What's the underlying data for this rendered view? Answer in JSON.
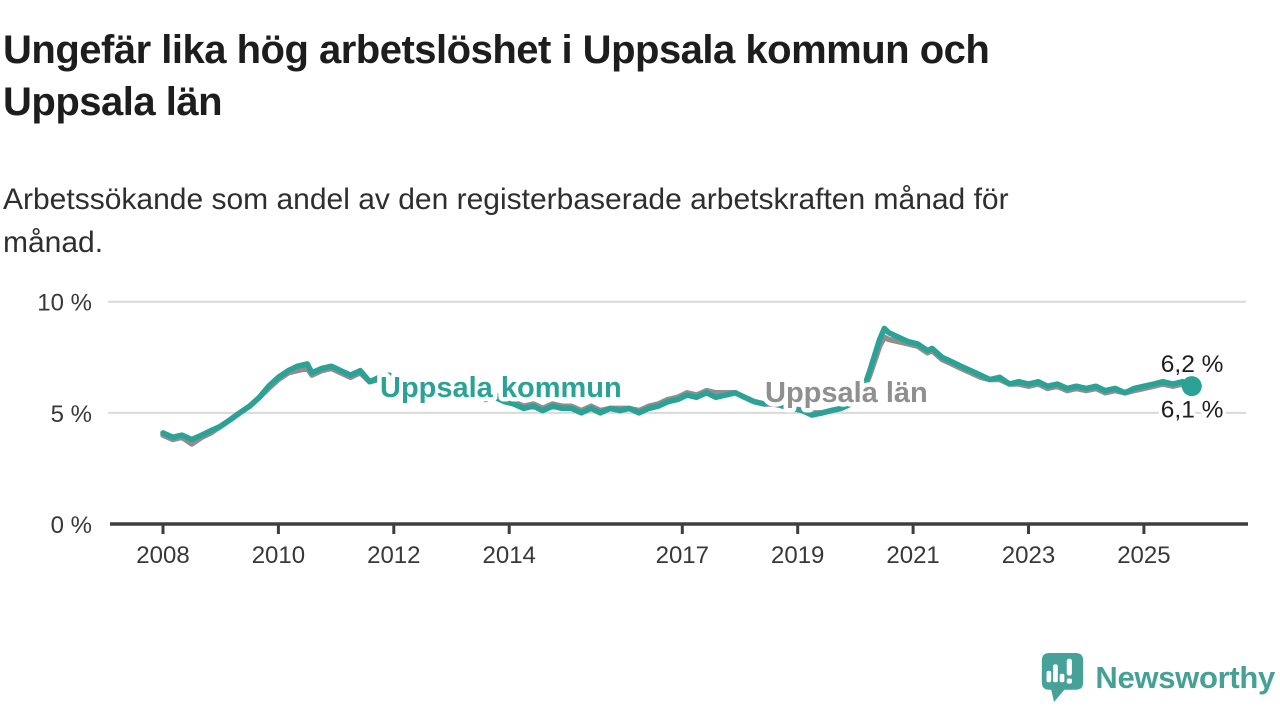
{
  "title": {
    "line1": "Ungefär lika hög arbetslöshet i Uppsala kommun och",
    "line2": "Uppsala län"
  },
  "subtitle": {
    "line1": "Arbetssökande som andel av den registerbaserade arbetskraften månad för",
    "line2": "månad."
  },
  "branding": {
    "logo_text": "Newsworthy",
    "logo_color": "#45a095"
  },
  "chart_data": {
    "type": "line",
    "title": "Ungefär lika hög arbetslöshet i Uppsala kommun och Uppsala län",
    "subtitle": "Arbetssökande som andel av den registerbaserade arbetskraften månad för månad.",
    "unit": "%",
    "ylim": [
      0,
      10.5
    ],
    "xlim": [
      2007.1,
      2026.8
    ],
    "grid": "horizontal",
    "legend_position": "inline-labels",
    "yticks": [
      {
        "value": 0,
        "label": "0 %"
      },
      {
        "value": 5,
        "label": "5 %"
      },
      {
        "value": 10,
        "label": "10 %"
      }
    ],
    "xticks": [
      {
        "year": 2008,
        "label": "2008"
      },
      {
        "year": 2010,
        "label": "2010"
      },
      {
        "year": 2012,
        "label": "2012"
      },
      {
        "year": 2014,
        "label": "2014"
      },
      {
        "year": 2017,
        "label": "2017"
      },
      {
        "year": 2019,
        "label": "2019"
      },
      {
        "year": 2021,
        "label": "2021"
      },
      {
        "year": 2023,
        "label": "2023"
      },
      {
        "year": 2025,
        "label": "2025"
      }
    ],
    "x": [
      2008.0,
      2008.17,
      2008.33,
      2008.5,
      2008.67,
      2008.83,
      2009.0,
      2009.17,
      2009.33,
      2009.5,
      2009.67,
      2009.83,
      2010.0,
      2010.17,
      2010.33,
      2010.5,
      2010.58,
      2010.75,
      2010.92,
      2011.08,
      2011.25,
      2011.42,
      2011.58,
      2011.75,
      2011.92,
      2012.08,
      2012.25,
      2012.42,
      2012.58,
      2012.75,
      2012.92,
      2013.08,
      2013.25,
      2013.42,
      2013.58,
      2013.75,
      2013.92,
      2014.08,
      2014.25,
      2014.42,
      2014.58,
      2014.75,
      2014.92,
      2015.08,
      2015.25,
      2015.42,
      2015.58,
      2015.75,
      2015.92,
      2016.08,
      2016.25,
      2016.42,
      2016.58,
      2016.75,
      2016.92,
      2017.08,
      2017.25,
      2017.42,
      2017.58,
      2017.75,
      2017.92,
      2018.08,
      2018.25,
      2018.42,
      2018.58,
      2018.75,
      2018.92,
      2019.08,
      2019.25,
      2019.42,
      2019.58,
      2019.75,
      2019.92,
      2020.08,
      2020.25,
      2020.42,
      2020.5,
      2020.58,
      2020.75,
      2020.92,
      2021.08,
      2021.25,
      2021.33,
      2021.5,
      2021.67,
      2021.83,
      2022.0,
      2022.17,
      2022.33,
      2022.5,
      2022.67,
      2022.83,
      2023.0,
      2023.17,
      2023.33,
      2023.5,
      2023.67,
      2023.83,
      2024.0,
      2024.17,
      2024.33,
      2024.5,
      2024.67,
      2024.83,
      2025.0,
      2025.17,
      2025.33,
      2025.5,
      2025.67,
      2025.75,
      2025.83
    ],
    "series": [
      {
        "name": "Uppsala kommun",
        "color": "#2aa396",
        "end_label": "6,2 %",
        "end_dot": true,
        "values": [
          4.1,
          3.9,
          4.0,
          3.8,
          4.0,
          4.2,
          4.4,
          4.7,
          5.0,
          5.3,
          5.7,
          6.2,
          6.6,
          6.9,
          7.1,
          7.2,
          6.8,
          7.0,
          7.1,
          6.9,
          6.7,
          6.9,
          6.4,
          6.6,
          6.7,
          6.3,
          6.0,
          6.3,
          6.1,
          6.2,
          6.0,
          5.9,
          5.7,
          5.8,
          5.6,
          5.7,
          5.5,
          5.4,
          5.2,
          5.3,
          5.1,
          5.3,
          5.2,
          5.2,
          5.0,
          5.2,
          5.0,
          5.2,
          5.1,
          5.2,
          5.0,
          5.2,
          5.3,
          5.5,
          5.6,
          5.8,
          5.7,
          5.9,
          5.7,
          5.8,
          5.9,
          5.7,
          5.5,
          5.4,
          5.5,
          5.3,
          5.2,
          5.1,
          4.9,
          5.0,
          5.1,
          5.2,
          5.4,
          5.6,
          6.9,
          8.3,
          8.8,
          8.6,
          8.4,
          8.2,
          8.1,
          7.8,
          7.9,
          7.5,
          7.3,
          7.1,
          6.9,
          6.7,
          6.5,
          6.6,
          6.3,
          6.4,
          6.3,
          6.4,
          6.2,
          6.3,
          6.1,
          6.2,
          6.1,
          6.2,
          6.0,
          6.1,
          5.9,
          6.1,
          6.2,
          6.3,
          6.4,
          6.3,
          6.4,
          6.1,
          6.2
        ]
      },
      {
        "name": "Uppsala län",
        "color": "#8f8f8f",
        "end_label": "6,1 %",
        "end_dot": false,
        "values": [
          4.0,
          3.8,
          3.9,
          3.6,
          3.9,
          4.1,
          4.4,
          4.7,
          5.0,
          5.3,
          5.7,
          6.1,
          6.5,
          6.8,
          6.9,
          7.0,
          6.7,
          6.9,
          7.0,
          6.8,
          6.6,
          6.8,
          6.4,
          6.5,
          6.6,
          6.2,
          6.0,
          6.2,
          6.1,
          6.1,
          6.0,
          5.9,
          5.8,
          5.9,
          5.7,
          5.8,
          5.6,
          5.5,
          5.3,
          5.4,
          5.2,
          5.4,
          5.3,
          5.3,
          5.1,
          5.3,
          5.1,
          5.2,
          5.2,
          5.2,
          5.1,
          5.3,
          5.4,
          5.6,
          5.7,
          5.9,
          5.8,
          6.0,
          5.9,
          5.9,
          5.9,
          5.7,
          5.5,
          5.4,
          5.4,
          5.3,
          5.2,
          5.1,
          5.0,
          5.0,
          5.1,
          5.2,
          5.4,
          5.6,
          6.7,
          8.0,
          8.4,
          8.3,
          8.2,
          8.1,
          8.0,
          7.7,
          7.8,
          7.4,
          7.2,
          7.0,
          6.8,
          6.6,
          6.5,
          6.5,
          6.3,
          6.3,
          6.2,
          6.3,
          6.1,
          6.2,
          6.0,
          6.1,
          6.0,
          6.1,
          5.9,
          6.0,
          5.9,
          6.0,
          6.1,
          6.2,
          6.3,
          6.2,
          6.3,
          6.0,
          6.1
        ]
      }
    ],
    "colors": {
      "axis": "#3e3e3e",
      "grid": "#d9d9d9",
      "tick_text": "#383838",
      "value_text": "#1e1e1e"
    }
  }
}
